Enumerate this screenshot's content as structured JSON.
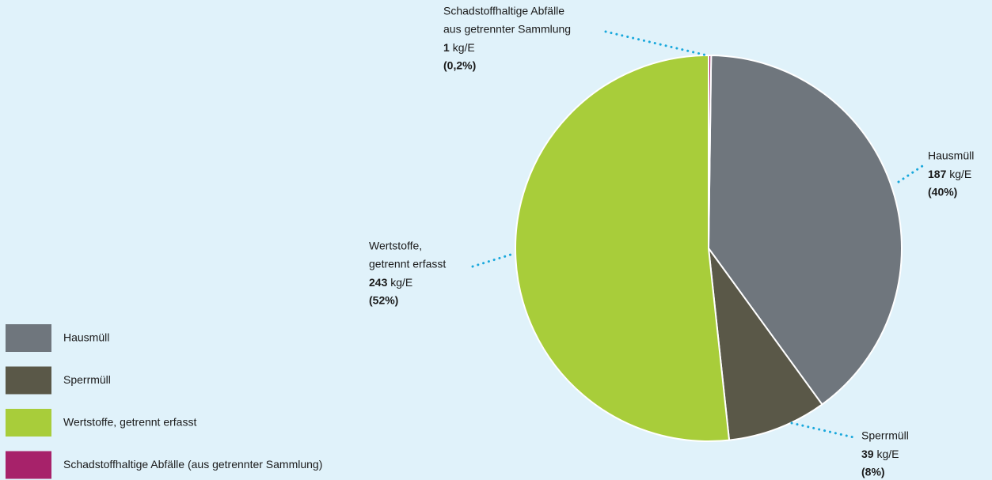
{
  "chart_data": {
    "type": "pie",
    "categories": [
      "Hausmüll",
      "Sperrmüll",
      "Wertstoffe, getrennt erfasst",
      "Schadstoffhaltige Abfälle (aus getrennter Sammlung)"
    ],
    "label_lines": [
      [
        "Hausmüll"
      ],
      [
        "Sperrmüll"
      ],
      [
        "Wertstoffe,",
        "getrennt erfasst"
      ],
      [
        "Schadstoffhaltige Abfälle",
        "aus getrennter Sammlung"
      ]
    ],
    "values": [
      187,
      39,
      243,
      1
    ],
    "unit": "kg/E",
    "percent_labels": [
      "(40%)",
      "(8%)",
      "(52%)",
      "(0,2%)"
    ],
    "colors": [
      "#6f767d",
      "#5a5848",
      "#a8cd3a",
      "#a7226a"
    ],
    "legend": "bottom-left"
  }
}
